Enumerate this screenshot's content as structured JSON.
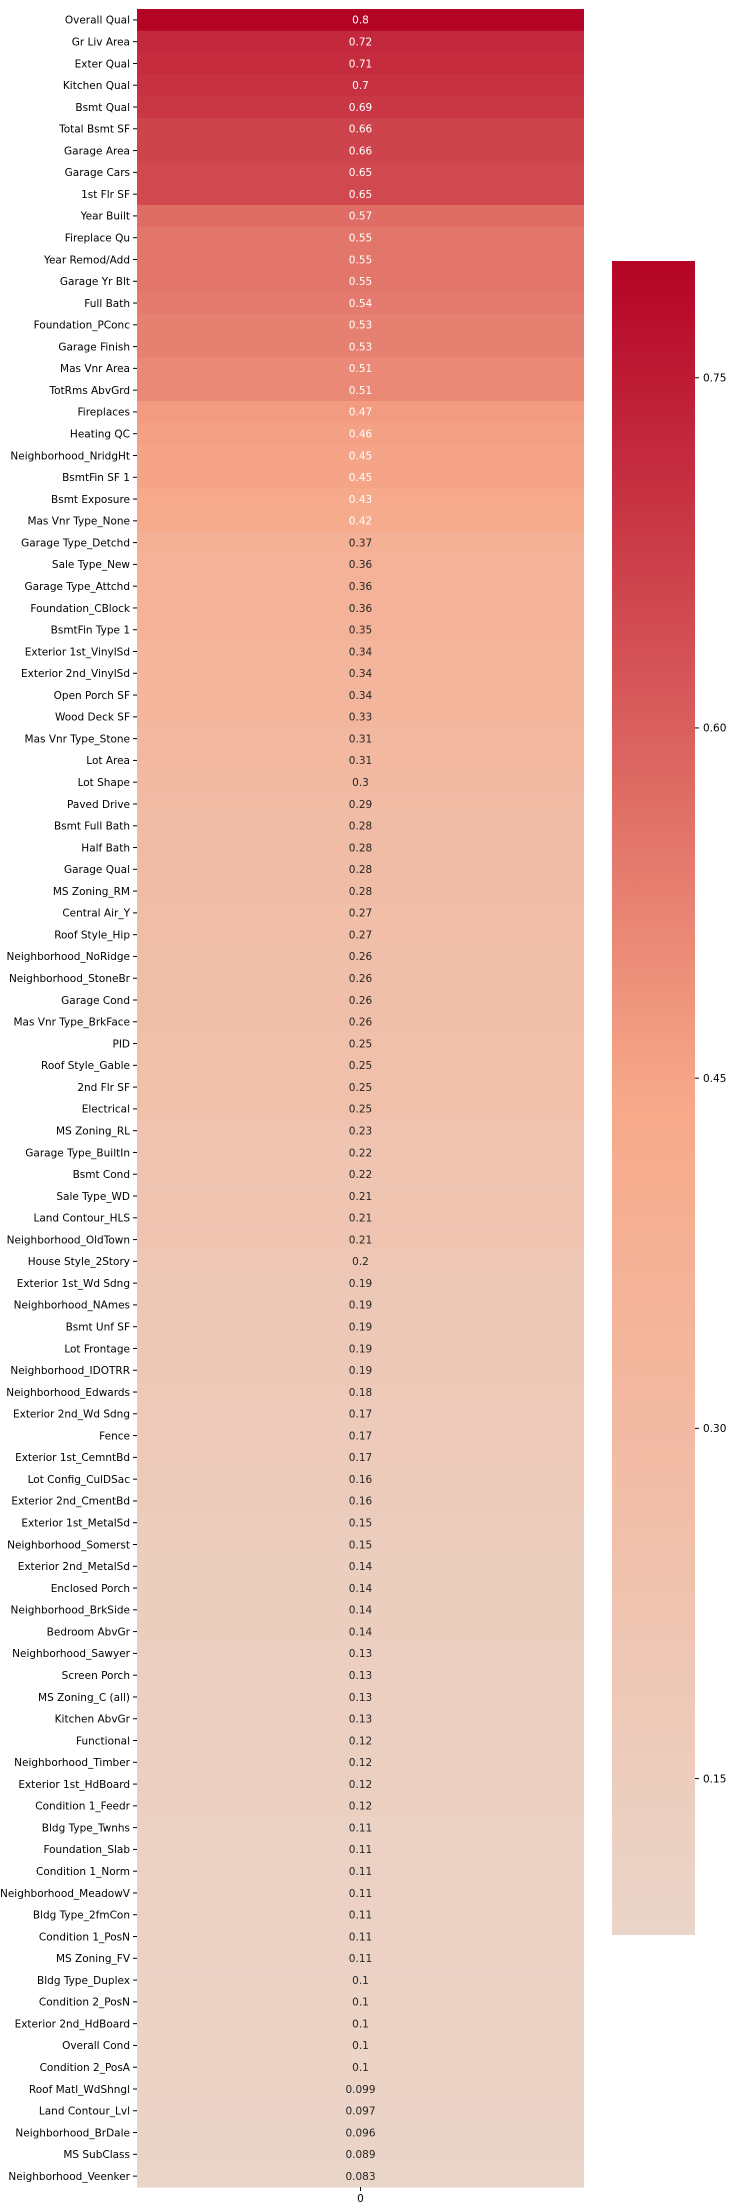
{
  "chart_data": {
    "type": "heatmap",
    "columns": [
      "0"
    ],
    "rows": [
      "Overall Qual",
      "Gr Liv Area",
      "Exter Qual",
      "Kitchen Qual",
      "Bsmt Qual",
      "Total Bsmt SF",
      "Garage Area",
      "Garage Cars",
      "1st Flr SF",
      "Year Built",
      "Fireplace Qu",
      "Year Remod/Add",
      "Garage Yr Blt",
      "Full Bath",
      "Foundation_PConc",
      "Garage Finish",
      "Mas Vnr Area",
      "TotRms AbvGrd",
      "Fireplaces",
      "Heating QC",
      "Neighborhood_NridgHt",
      "BsmtFin SF 1",
      "Bsmt Exposure",
      "Mas Vnr Type_None",
      "Garage Type_Detchd",
      "Sale Type_New",
      "Garage Type_Attchd",
      "Foundation_CBlock",
      "BsmtFin Type 1",
      "Exterior 1st_VinylSd",
      "Exterior 2nd_VinylSd",
      "Open Porch SF",
      "Wood Deck SF",
      "Mas Vnr Type_Stone",
      "Lot Area",
      "Lot Shape",
      "Paved Drive",
      "Bsmt Full Bath",
      "Half Bath",
      "Garage Qual",
      "MS Zoning_RM",
      "Central Air_Y",
      "Roof Style_Hip",
      "Neighborhood_NoRidge",
      "Neighborhood_StoneBr",
      "Garage Cond",
      "Mas Vnr Type_BrkFace",
      "PID",
      "Roof Style_Gable",
      "2nd Flr SF",
      "Electrical",
      "MS Zoning_RL",
      "Garage Type_BuiltIn",
      "Bsmt Cond",
      "Sale Type_WD ",
      "Land Contour_HLS",
      "Neighborhood_OldTown",
      "House Style_2Story",
      "Exterior 1st_Wd Sdng",
      "Neighborhood_NAmes",
      "Bsmt Unf SF",
      "Lot Frontage",
      "Neighborhood_IDOTRR",
      "Neighborhood_Edwards",
      "Exterior 2nd_Wd Sdng",
      "Fence",
      "Exterior 1st_CemntBd",
      "Lot Config_CulDSac",
      "Exterior 2nd_CmentBd",
      "Exterior 1st_MetalSd",
      "Neighborhood_Somerst",
      "Exterior 2nd_MetalSd",
      "Enclosed Porch",
      "Neighborhood_BrkSide",
      "Bedroom AbvGr",
      "Neighborhood_Sawyer",
      "Screen Porch",
      "MS Zoning_C (all)",
      "Kitchen AbvGr",
      "Functional",
      "Neighborhood_Timber",
      "Exterior 1st_HdBoard",
      "Condition 1_Feedr",
      "Bldg Type_Twnhs",
      "Foundation_Slab",
      "Condition 1_Norm",
      "Neighborhood_MeadowV",
      "Bldg Type_2fmCon",
      "Condition 1_PosN",
      "MS Zoning_FV",
      "Bldg Type_Duplex",
      "Condition 2_PosN",
      "Exterior 2nd_HdBoard",
      "Overall Cond",
      "Condition 2_PosA",
      "Roof Matl_WdShngl",
      "Land Contour_Lvl",
      "Neighborhood_BrDale",
      "MS SubClass",
      "Neighborhood_Veenker"
    ],
    "values": [
      0.8,
      0.72,
      0.71,
      0.7,
      0.69,
      0.66,
      0.66,
      0.65,
      0.65,
      0.57,
      0.55,
      0.55,
      0.55,
      0.54,
      0.53,
      0.53,
      0.51,
      0.51,
      0.47,
      0.46,
      0.45,
      0.45,
      0.43,
      0.42,
      0.37,
      0.36,
      0.36,
      0.36,
      0.35,
      0.34,
      0.34,
      0.34,
      0.33,
      0.31,
      0.31,
      0.3,
      0.29,
      0.28,
      0.28,
      0.28,
      0.28,
      0.27,
      0.27,
      0.26,
      0.26,
      0.26,
      0.26,
      0.25,
      0.25,
      0.25,
      0.25,
      0.23,
      0.22,
      0.22,
      0.21,
      0.21,
      0.21,
      0.2,
      0.19,
      0.19,
      0.19,
      0.19,
      0.19,
      0.18,
      0.17,
      0.17,
      0.17,
      0.16,
      0.16,
      0.15,
      0.15,
      0.14,
      0.14,
      0.14,
      0.14,
      0.13,
      0.13,
      0.13,
      0.13,
      0.12,
      0.12,
      0.12,
      0.12,
      0.11,
      0.11,
      0.11,
      0.11,
      0.11,
      0.11,
      0.11,
      0.1,
      0.1,
      0.1,
      0.1,
      0.1,
      0.099,
      0.097,
      0.096,
      0.089,
      0.083
    ],
    "colorbar": {
      "ticks": [
        "0.75",
        "0.60",
        "0.45",
        "0.30",
        "0.15"
      ],
      "tick_values": [
        0.75,
        0.6,
        0.45,
        0.3,
        0.15
      ],
      "vmin": 0.083,
      "vmax": 0.8
    },
    "colormap": {
      "low": "#ead5c9",
      "mid": "#f7a889",
      "high": "#b40426"
    },
    "grid": false,
    "legend": "right"
  }
}
